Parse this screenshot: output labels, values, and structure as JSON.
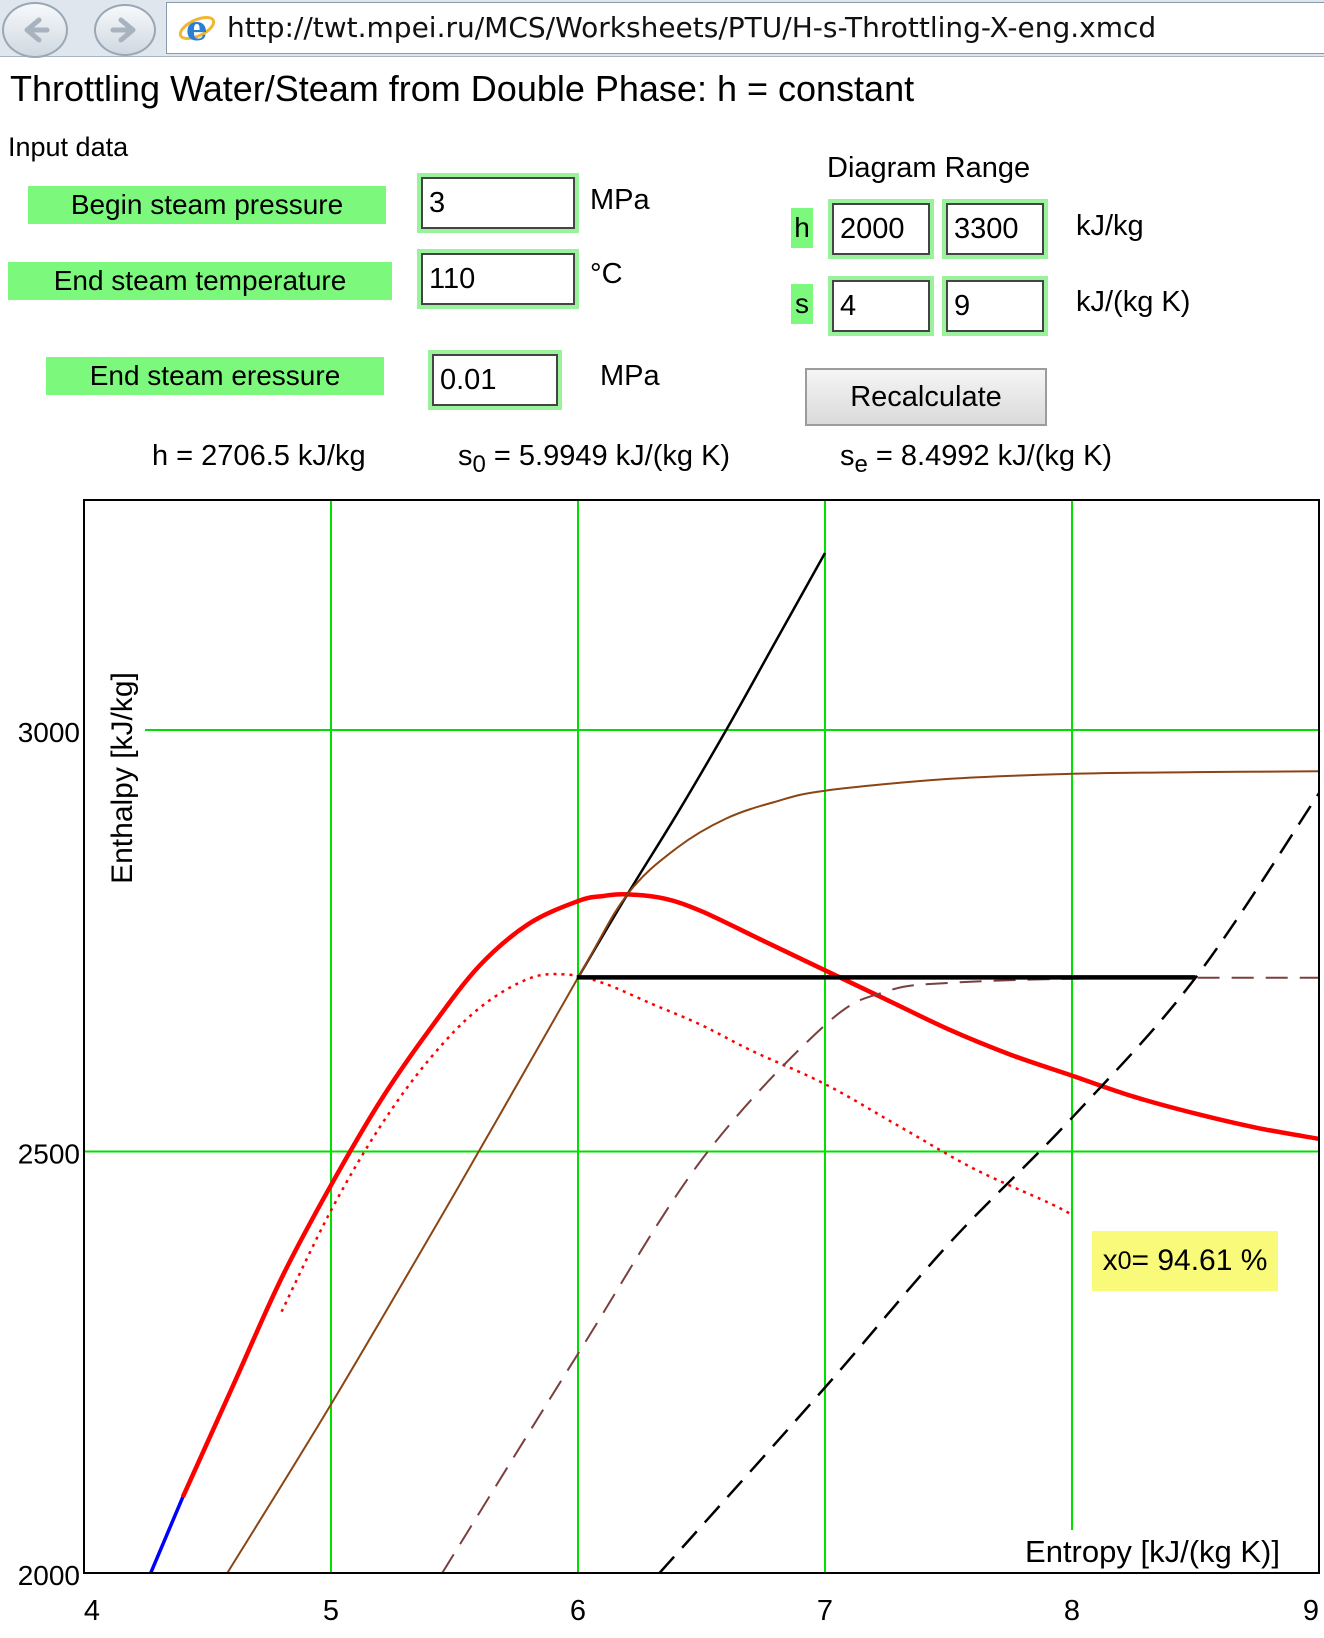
{
  "browser": {
    "url": "http://twt.mpei.ru/MCS/Worksheets/PTU/H-s-Throttling-X-eng.xmcd"
  },
  "page": {
    "title": "Throttling Water/Steam from Double Phase: h = constant"
  },
  "input": {
    "heading": "Input data",
    "begin_pressure": {
      "label": "Begin steam pressure",
      "value": "3",
      "unit": "MPa"
    },
    "end_temperature": {
      "label": "End steam temperature",
      "value": "110",
      "unit": "°C"
    },
    "end_pressure": {
      "label": "End steam eressure",
      "value": "0.01",
      "unit": "MPa"
    }
  },
  "range": {
    "heading": "Diagram Range",
    "h_label": "h",
    "h_min": "2000",
    "h_max": "3300",
    "h_unit": "kJ/kg",
    "s_label": "s",
    "s_min": "4",
    "s_max": "9",
    "s_unit": "kJ/(kg K)",
    "recalc_label": "Recalculate"
  },
  "results": {
    "h_text": "h = 2706.5 kJ/kg",
    "s0_sym": "s",
    "s0_sub": "0",
    "s0_text": " = 5.9949 kJ/(kg K)",
    "se_sym": "s",
    "se_sub": "e",
    "se_text": " = 8.4992 kJ/(kg K)"
  },
  "x0_badge": {
    "sym": "x",
    "sub": "0",
    "text": " = 94.61 %"
  },
  "chart_data": {
    "type": "line",
    "xlabel": "Entropy [kJ/(kg K)]",
    "ylabel": "Enthalpy [kJ/kg]",
    "xlim": [
      4,
      9
    ],
    "ylim": [
      2000,
      3000
    ],
    "xticks": [
      "4",
      "5",
      "6",
      "7",
      "8",
      "9"
    ],
    "yticks": [
      "2000",
      "2500",
      "3000"
    ],
    "grid": true,
    "grid_color": "#00e000",
    "series": [
      {
        "style": "red-bold",
        "color": "#ff0000",
        "x": [
          4.4,
          4.6,
          4.8,
          5.0,
          5.2,
          5.4,
          5.6,
          5.8,
          6.0,
          6.1,
          6.2,
          6.35,
          6.5,
          6.75,
          7.0,
          7.25,
          7.5,
          7.75,
          8.0,
          8.25,
          8.5,
          8.75,
          9.0
        ],
        "y": [
          2090,
          2220,
          2350,
          2460,
          2560,
          2645,
          2720,
          2770,
          2797,
          2803,
          2805,
          2800,
          2785,
          2750,
          2715,
          2680,
          2645,
          2615,
          2590,
          2565,
          2545,
          2528,
          2515
        ]
      },
      {
        "style": "blue",
        "color": "#0000ff",
        "x": [
          4.27,
          4.4
        ],
        "y": [
          2000,
          2090
        ]
      },
      {
        "style": "red-dotted",
        "color": "#ff0000",
        "x": [
          4.8,
          5.0,
          5.2,
          5.4,
          5.6,
          5.8,
          5.95,
          6.1,
          6.3,
          6.5,
          6.7,
          7.0,
          7.3,
          7.6,
          7.9,
          8.0
        ],
        "y": [
          2310,
          2430,
          2530,
          2610,
          2670,
          2705,
          2710,
          2700,
          2675,
          2650,
          2620,
          2580,
          2530,
          2480,
          2440,
          2425
        ]
      },
      {
        "style": "black-curve",
        "color": "#000000",
        "x": [
          6.0,
          6.2,
          6.4,
          6.6,
          6.8,
          7.0
        ],
        "y": [
          2706,
          2805,
          2900,
          3000,
          3105,
          3210
        ]
      },
      {
        "style": "brown",
        "color": "#8b4513",
        "x": [
          4.58,
          5.0,
          5.5,
          6.0,
          6.2,
          6.4,
          6.6,
          6.8,
          7.0,
          7.5,
          8.0,
          8.5,
          9.0
        ],
        "y": [
          2000,
          2200,
          2450,
          2706,
          2805,
          2860,
          2895,
          2915,
          2928,
          2942,
          2948,
          2950,
          2951
        ]
      },
      {
        "style": "brown-dashed",
        "color": "#7a4040",
        "x": [
          5.45,
          6.0,
          6.5,
          7.0,
          7.25,
          7.5,
          8.0,
          8.5,
          9.0
        ],
        "y": [
          2000,
          2260,
          2490,
          2650,
          2690,
          2700,
          2705,
          2706,
          2706
        ]
      },
      {
        "style": "black-dashed",
        "color": "#000000",
        "x": [
          6.33,
          7.0,
          7.5,
          8.0,
          8.5,
          9.0
        ],
        "y": [
          2000,
          2220,
          2390,
          2540,
          2706,
          2925
        ]
      },
      {
        "style": "black-throttle",
        "color": "#000000",
        "x": [
          5.9949,
          8.4992
        ],
        "y": [
          2706.5,
          2706.5
        ]
      }
    ]
  }
}
